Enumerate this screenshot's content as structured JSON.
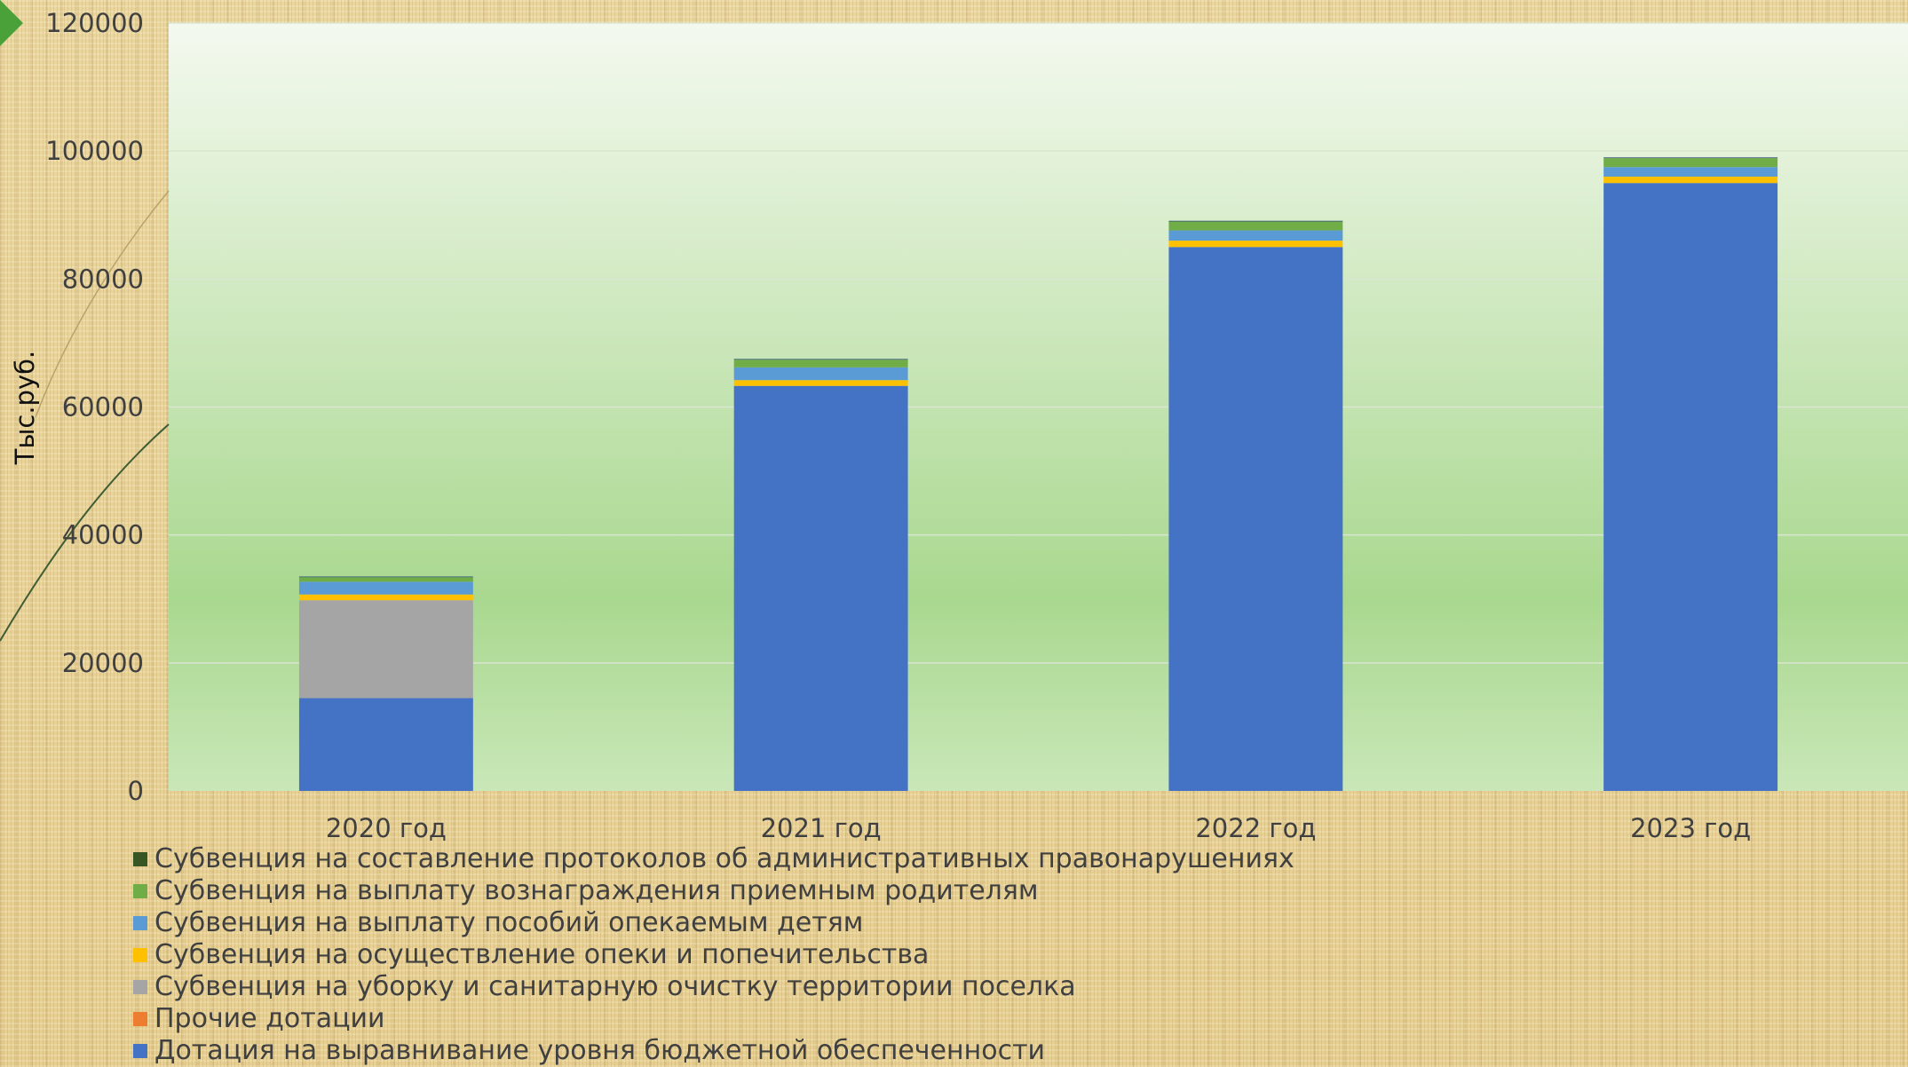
{
  "chart_data": {
    "type": "bar",
    "stacked": true,
    "categories": [
      "2020 год",
      "2021 год",
      "2022 год",
      "2023 год"
    ],
    "ylabel": "Тыс.руб.",
    "ylim": [
      0,
      120000
    ],
    "yticks": [
      0,
      20000,
      40000,
      60000,
      80000,
      100000,
      120000
    ],
    "ytick_labels": [
      "0",
      "20000",
      "40000",
      "60000",
      "80000",
      "100000",
      "120000"
    ],
    "grid": true,
    "legend_position": "bottom",
    "series": [
      {
        "name": "Дотация на выравнивание уровня бюджетной обеспеченности",
        "color": "#4472c4",
        "values": [
          14500,
          63300,
          85000,
          95000
        ]
      },
      {
        "name": "Прочие дотации",
        "color": "#ed7d31",
        "values": [
          0,
          0,
          0,
          0
        ]
      },
      {
        "name": "Субвенция на уборку и санитарную очистку территории поселка",
        "color": "#a5a5a5",
        "values": [
          15300,
          0,
          0,
          0
        ]
      },
      {
        "name": "Субвенция на осуществление опеки и попечительства",
        "color": "#ffc000",
        "values": [
          900,
          900,
          1000,
          1000
        ]
      },
      {
        "name": "Субвенция на выплату пособий опекаемым детям",
        "color": "#5b9bd5",
        "values": [
          2000,
          2000,
          1600,
          1500
        ]
      },
      {
        "name": "Субвенция на выплату вознаграждения приемным родителям",
        "color": "#70ad47",
        "values": [
          700,
          1200,
          1400,
          1400
        ]
      },
      {
        "name": "Субвенция на составление протоколов об административных правонарушениях",
        "color": "#264478",
        "values": [
          100,
          100,
          100,
          100
        ]
      }
    ]
  },
  "legend_order": [
    6,
    5,
    4,
    3,
    2,
    1,
    0
  ],
  "colors": {
    "plot_top": "#f4f9ef",
    "plot_mid": "#a9d88f",
    "plot_bottom": "#c9e7b8",
    "grid": "#d9e6d1",
    "protocol_swatch": "#375623",
    "decor_arrow": "#4aa13a",
    "decor_curve": "#3f5d34"
  }
}
